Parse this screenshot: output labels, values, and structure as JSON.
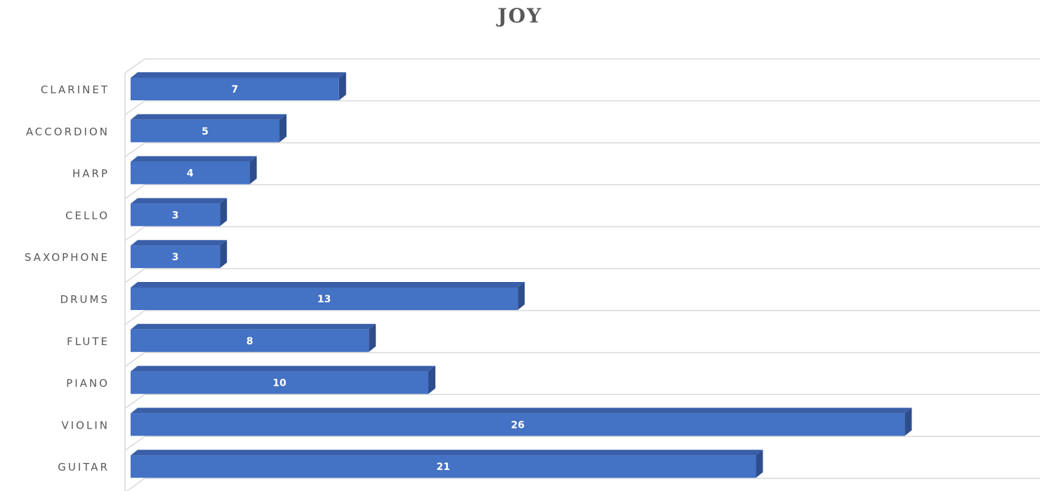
{
  "chart_data": {
    "type": "bar",
    "orientation": "horizontal",
    "title": "JOY",
    "categories": [
      "CLARINET",
      "ACCORDION",
      "HARP",
      "CELLO",
      "SAXOPHONE",
      "DRUMS",
      "FLUTE",
      "PIANO",
      "VIOLIN",
      "GUITAR"
    ],
    "values": [
      7,
      5,
      4,
      3,
      3,
      13,
      8,
      10,
      26,
      21
    ],
    "data_labels": true,
    "xlim": [
      0,
      30
    ],
    "grid": true,
    "legend": "none",
    "style": "3d",
    "colors": {
      "bar_front": "#4472C4",
      "bar_top": "#3A5FA8",
      "bar_side": "#2E4D8C",
      "grid": "#D9D9D9",
      "label": "#595959"
    }
  }
}
